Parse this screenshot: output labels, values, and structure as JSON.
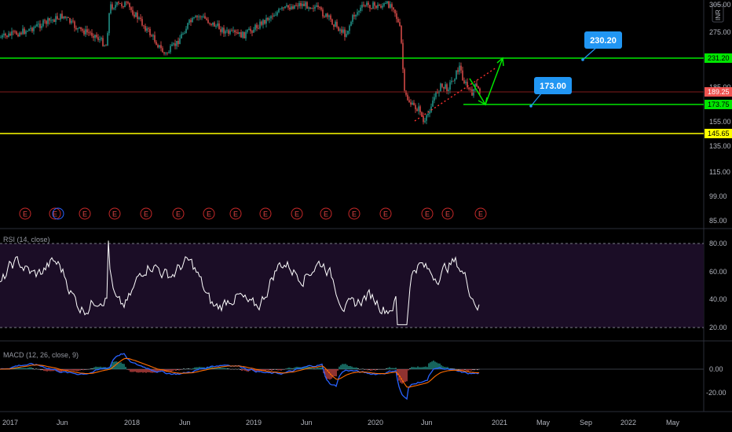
{
  "currency": "INR",
  "main_axis": {
    "ticks": [
      "305.00",
      "275.00",
      "185.00",
      "155.00",
      "135.00",
      "115.00",
      "99.00",
      "85.00"
    ]
  },
  "price_labels": [
    {
      "value": "231.20",
      "bg": "#00e600",
      "fg": "#000000"
    },
    {
      "value": "189.25",
      "bg": "#ef5350",
      "fg": "#ffffff"
    },
    {
      "value": "173.75",
      "bg": "#00e600",
      "fg": "#000000"
    },
    {
      "value": "145.65",
      "bg": "#ffff00",
      "fg": "#000000"
    }
  ],
  "horizontal_levels": [
    {
      "price": 231.2,
      "color": "#00e600"
    },
    {
      "price": 173.75,
      "color": "#00e600"
    },
    {
      "price": 145.65,
      "color": "#ffff00"
    },
    {
      "price": 189.25,
      "color": "#7f1d1d"
    }
  ],
  "callouts": [
    {
      "text": "230.20",
      "bg": "#2196f3"
    },
    {
      "text": "173.00",
      "bg": "#2196f3"
    }
  ],
  "earnings_marker": "E",
  "rsi": {
    "title": "RSI (14, close)",
    "ticks": [
      "80.00",
      "60.00",
      "40.00",
      "20.00"
    ],
    "upper": 80,
    "lower": 20
  },
  "macd": {
    "title": "MACD (12, 26, close, 9)",
    "ticks": [
      "0.00",
      "-20.00"
    ]
  },
  "time_axis": [
    "2017",
    "Jun",
    "2018",
    "Jun",
    "2019",
    "Jun",
    "2020",
    "Jun",
    "2021",
    "May",
    "Sep",
    "2022",
    "May"
  ],
  "colors": {
    "background": "#000000",
    "candle_up": "#26a69a",
    "candle_down": "#ef5350",
    "rsi_line": "#ffffff",
    "rsi_band": "#1b0d26",
    "macd_line": "#2962ff",
    "signal_line": "#ff6d00",
    "arrow": "#00e600",
    "trend_dotted": "#ff3030"
  },
  "chart_data": {
    "type": "candlestick",
    "instrument_currency": "INR",
    "x": [
      "2017",
      "Jun",
      "2018",
      "Jun",
      "2019",
      "Jun",
      "2020",
      "Jun",
      "2021",
      "May",
      "Sep",
      "2022",
      "May"
    ],
    "price_levels": {
      "resistance": 231.2,
      "last": 189.25,
      "support": 173.75,
      "low": 145.65
    },
    "targets": [
      230.2,
      173.0
    ],
    "approx_close_path": [
      {
        "x": "2017",
        "y": 255
      },
      {
        "x": "Jun",
        "y": 262
      },
      {
        "x": "2018",
        "y": 290
      },
      {
        "x": "Jun",
        "y": 248
      },
      {
        "x": "2019",
        "y": 268
      },
      {
        "x": "Jun",
        "y": 290
      },
      {
        "x": "2020",
        "y": 300
      },
      {
        "x": "Jun",
        "y": 165
      },
      {
        "x": "2021",
        "y": 190
      }
    ],
    "rsi": {
      "upper": 80,
      "lower": 20,
      "range": [
        0,
        100
      ]
    },
    "macd": {
      "range": [
        -30,
        15
      ]
    }
  }
}
